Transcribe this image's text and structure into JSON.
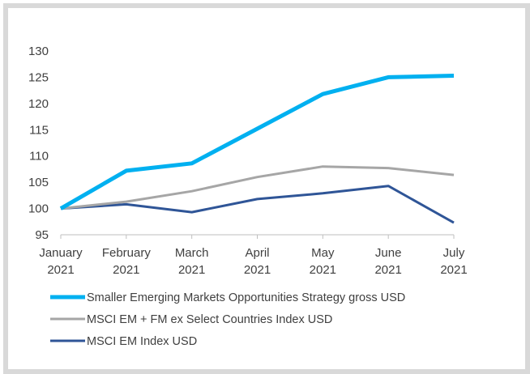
{
  "chart_data": {
    "type": "line",
    "title": "",
    "xlabel": "",
    "ylabel": "",
    "ylim": [
      95,
      130
    ],
    "yticks": [
      95,
      100,
      105,
      110,
      115,
      120,
      125,
      130
    ],
    "grid": false,
    "legend_position": "bottom",
    "categories": [
      [
        "January",
        "2021"
      ],
      [
        "February",
        "2021"
      ],
      [
        "March",
        "2021"
      ],
      [
        "April",
        "2021"
      ],
      [
        "May",
        "2021"
      ],
      [
        "June",
        "2021"
      ],
      [
        "July",
        "2021"
      ]
    ],
    "series": [
      {
        "name": "Smaller Emerging Markets Opportunities Strategy gross USD",
        "color": "#00b0f0",
        "values": [
          100,
          107.2,
          108.6,
          115.2,
          121.8,
          125.0,
          125.3
        ]
      },
      {
        "name": "MSCI EM + FM ex Select Countries Index USD",
        "color": "#a6a6a6",
        "values": [
          100,
          101.3,
          103.3,
          106.0,
          108.0,
          107.7,
          106.4
        ]
      },
      {
        "name": "MSCI EM Index USD",
        "color": "#2f5597",
        "values": [
          100,
          100.8,
          99.3,
          101.8,
          102.9,
          104.3,
          97.3
        ]
      }
    ]
  }
}
